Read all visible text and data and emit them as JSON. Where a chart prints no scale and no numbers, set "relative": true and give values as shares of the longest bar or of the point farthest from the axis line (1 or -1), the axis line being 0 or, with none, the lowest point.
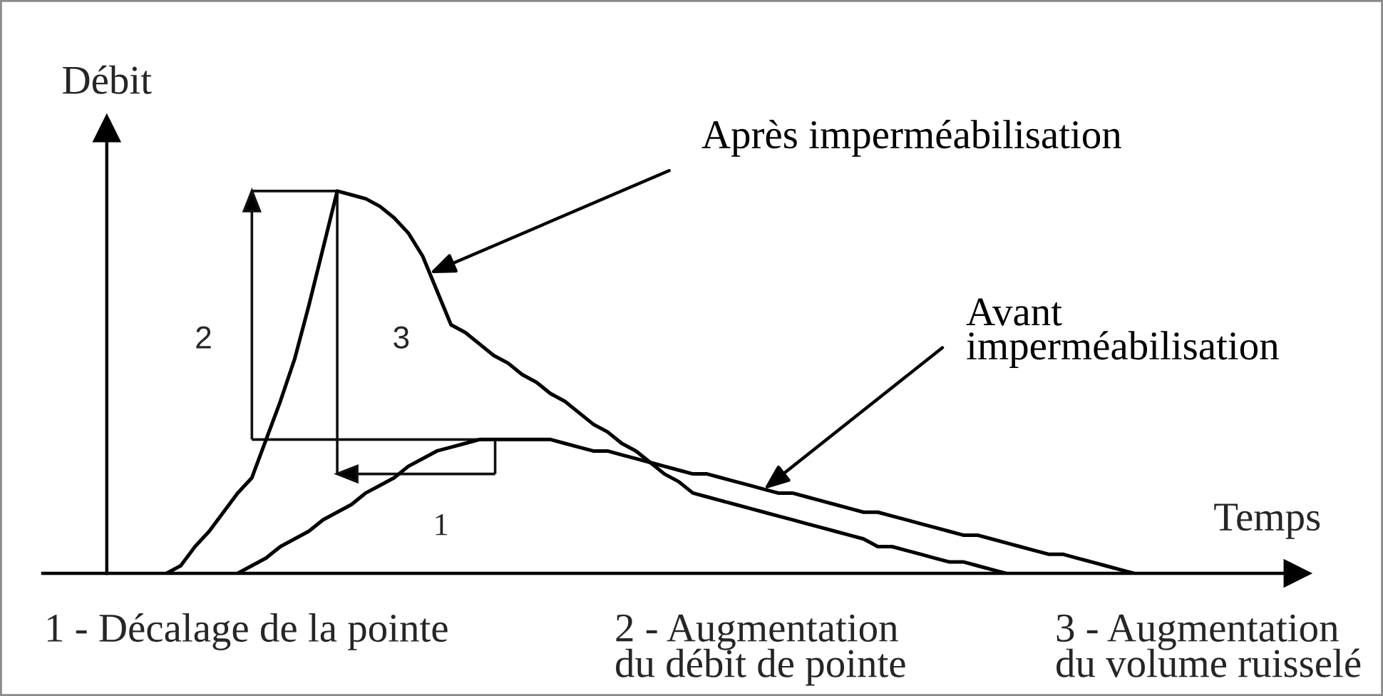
{
  "chart_data": {
    "type": "line",
    "relative": true,
    "xlabel": "Temps",
    "ylabel": "Débit",
    "categories": [
      null,
      null,
      null,
      null,
      null,
      null,
      null,
      null,
      null,
      null,
      null,
      null,
      null,
      null,
      null,
      null,
      null,
      null,
      null,
      null,
      null,
      null,
      null,
      null,
      null,
      null,
      null,
      null,
      null,
      null,
      null,
      null,
      null,
      null,
      null,
      null,
      null,
      null,
      null,
      null,
      null,
      null,
      null,
      null,
      null,
      null,
      null,
      null,
      null,
      null,
      null,
      null,
      null,
      null,
      null,
      null,
      null,
      null,
      null,
      null,
      null,
      null,
      null,
      null,
      null,
      null,
      null,
      null,
      null
    ],
    "series": [
      {
        "name": "Après imperméabilisation",
        "color": "#000000",
        "values": [
          0,
          0.02,
          0.07,
          0.11,
          0.16,
          0.21,
          0.25,
          0.35,
          0.45,
          0.56,
          0.7,
          0.85,
          1,
          0.99,
          0.98,
          0.96,
          0.93,
          0.89,
          0.83,
          0.74,
          0.65,
          0.63,
          0.6,
          0.57,
          0.55,
          0.52,
          0.5,
          0.47,
          0.45,
          0.42,
          0.39,
          0.37,
          0.34,
          0.32,
          0.29,
          0.26,
          0.24,
          0.21,
          0.2,
          0.19,
          0.18,
          0.17,
          0.16,
          0.15,
          0.14,
          0.13,
          0.12,
          0.11,
          0.1,
          0.09,
          0.07,
          0.07,
          0.06,
          0.05,
          0.04,
          0.03,
          0.03,
          0.02,
          0.01,
          0,
          null,
          null,
          null,
          null,
          null,
          null,
          null,
          null,
          null
        ]
      },
      {
        "name": "Avant\nimperméabilisation",
        "color": "#000000",
        "values": [
          null,
          null,
          null,
          null,
          null,
          0,
          0.02,
          0.04,
          0.07,
          0.09,
          0.11,
          0.14,
          0.16,
          0.18,
          0.21,
          0.23,
          0.25,
          0.28,
          0.3,
          0.32,
          0.33,
          0.34,
          0.35,
          0.35,
          0.35,
          0.35,
          0.35,
          0.35,
          0.34,
          0.33,
          0.32,
          0.32,
          0.31,
          0.3,
          0.29,
          0.28,
          0.27,
          0.26,
          0.26,
          0.25,
          0.24,
          0.23,
          0.22,
          0.21,
          0.21,
          0.2,
          0.19,
          0.18,
          0.17,
          0.16,
          0.16,
          0.15,
          0.14,
          0.13,
          0.12,
          0.11,
          0.1,
          0.1,
          0.09,
          0.08,
          0.07,
          0.06,
          0.05,
          0.05,
          0.04,
          0.03,
          0.02,
          0.01,
          0
        ]
      }
    ],
    "annotations": [
      "2",
      "3",
      "1",
      "1 - Décalage de la pointe",
      "2 - Augmentation\ndu débit de pointe",
      "3 - Augmentation\ndu volume ruisselé"
    ]
  }
}
